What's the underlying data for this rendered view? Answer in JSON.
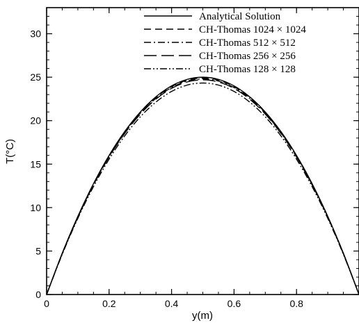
{
  "chart_data": {
    "type": "line",
    "xlabel": "y(m)",
    "ylabel": "T(°C)",
    "xlim": [
      0,
      1
    ],
    "ylim": [
      0,
      33
    ],
    "x_ticks": [
      0,
      0.2,
      0.4,
      0.6,
      0.8
    ],
    "x_tick_labels": [
      "0",
      "0.2",
      "0.4",
      "0.6",
      "0.8"
    ],
    "y_ticks": [
      0,
      5,
      10,
      15,
      20,
      25,
      30
    ],
    "y_tick_labels": [
      "0",
      "5",
      "10",
      "15",
      "20",
      "25",
      "30"
    ],
    "grid": false,
    "legend_position": "top-right",
    "colors": {
      "line": "#000000",
      "background": "#ffffff"
    },
    "x": [
      0,
      0.05,
      0.1,
      0.15,
      0.2,
      0.25,
      0.3,
      0.35,
      0.4,
      0.45,
      0.5,
      0.55,
      0.6,
      0.65,
      0.7,
      0.75,
      0.8,
      0.85,
      0.9,
      0.95,
      1.0
    ],
    "series": [
      {
        "name": "Analytical Solution",
        "dash": "solid",
        "values": [
          0,
          4.75,
          9.0,
          12.75,
          16.0,
          18.75,
          21.0,
          22.75,
          24.0,
          24.75,
          25.0,
          24.75,
          24.0,
          22.75,
          21.0,
          18.75,
          16.0,
          12.75,
          9.0,
          4.75,
          0
        ]
      },
      {
        "name": "CH-Thomas 1024 × 1024",
        "dash": "dash",
        "values": [
          0,
          4.73,
          8.96,
          12.7,
          15.94,
          18.68,
          20.92,
          22.66,
          23.9,
          24.65,
          24.9,
          24.65,
          23.9,
          22.66,
          20.92,
          18.68,
          15.94,
          12.7,
          8.96,
          4.73,
          0
        ]
      },
      {
        "name": "CH-Thomas 512 × 512",
        "dash": "dashdot",
        "values": [
          0,
          4.71,
          8.93,
          12.65,
          15.87,
          18.6,
          20.84,
          22.57,
          23.81,
          24.55,
          24.8,
          24.55,
          23.81,
          22.57,
          20.84,
          18.6,
          15.87,
          12.65,
          8.93,
          4.71,
          0
        ]
      },
      {
        "name": "CH-Thomas 256 × 256",
        "dash": "longdash",
        "values": [
          0,
          4.69,
          8.89,
          12.6,
          15.81,
          18.53,
          20.75,
          22.48,
          23.71,
          24.45,
          24.7,
          24.45,
          23.71,
          22.48,
          20.75,
          18.53,
          15.81,
          12.6,
          8.89,
          4.69,
          0
        ]
      },
      {
        "name": "CH-Thomas 128 × 128",
        "dash": "dashdotdot",
        "values": [
          0,
          4.62,
          8.76,
          12.41,
          15.57,
          18.25,
          20.44,
          22.14,
          23.36,
          24.09,
          24.33,
          24.09,
          23.36,
          22.14,
          20.44,
          18.25,
          15.57,
          12.41,
          8.76,
          4.62,
          0
        ]
      }
    ]
  }
}
